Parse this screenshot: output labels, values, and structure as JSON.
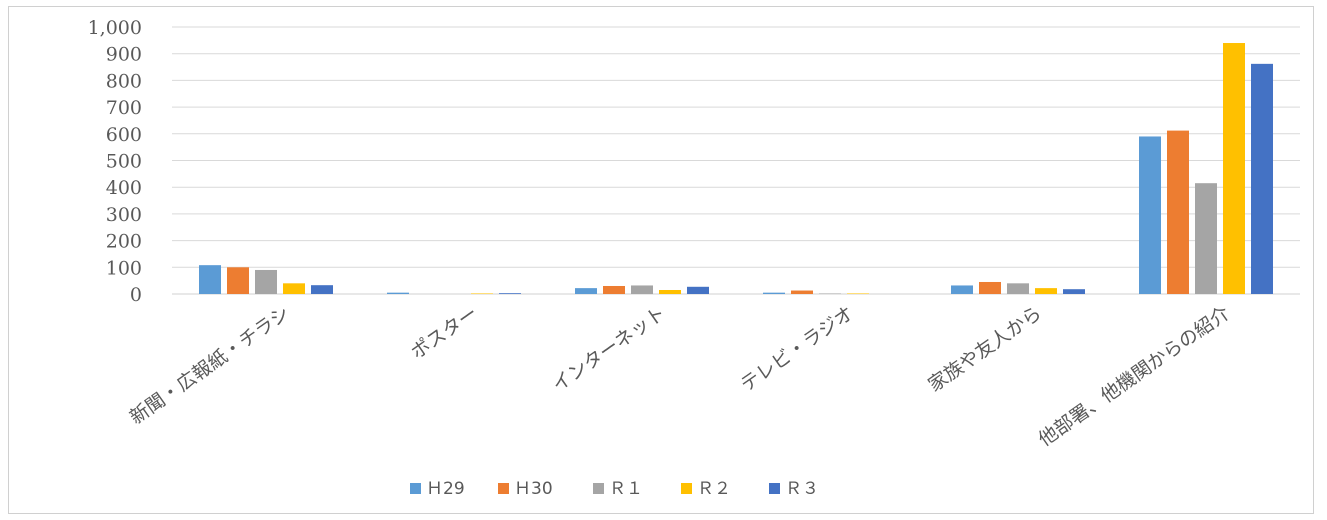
{
  "chart_data": {
    "type": "bar",
    "categories": [
      "新聞・広報紙・チラシ",
      "ポスター",
      "インターネット",
      "テレビ・ラジオ",
      "家族や友人から",
      "他部署、他機関からの紹介"
    ],
    "series": [
      {
        "name": "H29",
        "color": "#5b9bd5",
        "values": [
          108,
          5,
          22,
          5,
          32,
          590
        ]
      },
      {
        "name": "H30",
        "color": "#ed7d31",
        "values": [
          100,
          0,
          30,
          13,
          45,
          612
        ]
      },
      {
        "name": "R1",
        "color": "#a5a5a5",
        "values": [
          90,
          0,
          32,
          2,
          40,
          415
        ]
      },
      {
        "name": "R2",
        "color": "#ffc000",
        "values": [
          40,
          2,
          15,
          2,
          22,
          940
        ]
      },
      {
        "name": "R3",
        "color": "#4472c4",
        "values": [
          33,
          3,
          27,
          0,
          18,
          862
        ]
      }
    ],
    "yticks": [
      "0",
      "100",
      "200",
      "300",
      "400",
      "500",
      "600",
      "700",
      "800",
      "900",
      "1,000"
    ],
    "ylim": [
      0,
      1000
    ],
    "grid": true,
    "legend_position": "bottom",
    "legend_labels": [
      "Ｈ29",
      "Ｈ30",
      "Ｒ１",
      "Ｒ２",
      "Ｒ３"
    ]
  }
}
